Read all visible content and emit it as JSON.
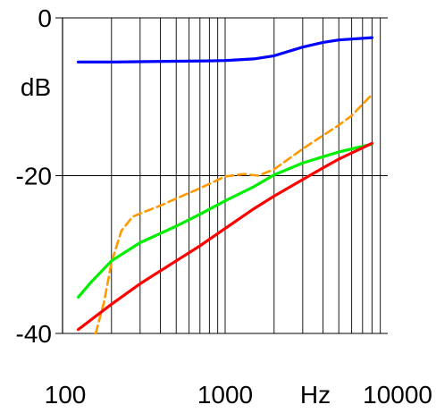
{
  "chart_data": {
    "type": "line",
    "x_scale": "log",
    "xlim": [
      100,
      10000
    ],
    "ylim": [
      -40,
      0
    ],
    "grid": true,
    "y_ticks": [
      {
        "value": 0,
        "label": "0"
      },
      {
        "value": -20,
        "label": "-20"
      },
      {
        "value": -40,
        "label": "-40"
      }
    ],
    "x_ticks": [
      {
        "value": 100,
        "label": "100"
      },
      {
        "value": 1000,
        "label": "1000"
      },
      {
        "value": 10000,
        "label": "10000"
      }
    ],
    "ylabel": "dB",
    "xlabel": "Hz",
    "series": [
      {
        "color": "#0000ff",
        "dash": false,
        "x": [
          125,
          200,
          300,
          500,
          800,
          1000,
          1500,
          2000,
          3000,
          4000,
          5000,
          8000
        ],
        "y": [
          -5.6,
          -5.6,
          -5.55,
          -5.5,
          -5.45,
          -5.4,
          -5.2,
          -4.8,
          -3.7,
          -3.1,
          -2.8,
          -2.5
        ]
      },
      {
        "color": "#ff9900",
        "dash": true,
        "x": [
          160,
          180,
          200,
          230,
          270,
          300,
          400,
          500,
          700,
          1000,
          1300,
          1600,
          2000,
          3000,
          4000,
          5000,
          6000,
          8000
        ],
        "y": [
          -40,
          -36,
          -31,
          -27,
          -25.2,
          -24.8,
          -23.8,
          -22.9,
          -21.6,
          -20.1,
          -19.8,
          -20,
          -19.2,
          -16.6,
          -14.9,
          -13.6,
          -12.4,
          -9.7
        ]
      },
      {
        "color": "#00ee00",
        "dash": false,
        "x": [
          125,
          150,
          200,
          300,
          500,
          700,
          1000,
          1500,
          2000,
          3000,
          4000,
          5000,
          8000
        ],
        "y": [
          -35.4,
          -33.5,
          -30.8,
          -28.5,
          -26.4,
          -24.9,
          -23.2,
          -21.4,
          -19.9,
          -18.4,
          -17.6,
          -17,
          -16
        ]
      },
      {
        "color": "#ff0000",
        "dash": false,
        "x": [
          125,
          200,
          300,
          500,
          700,
          1000,
          1500,
          2000,
          3000,
          4000,
          5000,
          8000
        ],
        "y": [
          -39.5,
          -36.3,
          -33.7,
          -30.8,
          -28.9,
          -26.7,
          -24.2,
          -22.6,
          -20.5,
          -19,
          -17.9,
          -15.9
        ]
      }
    ]
  }
}
